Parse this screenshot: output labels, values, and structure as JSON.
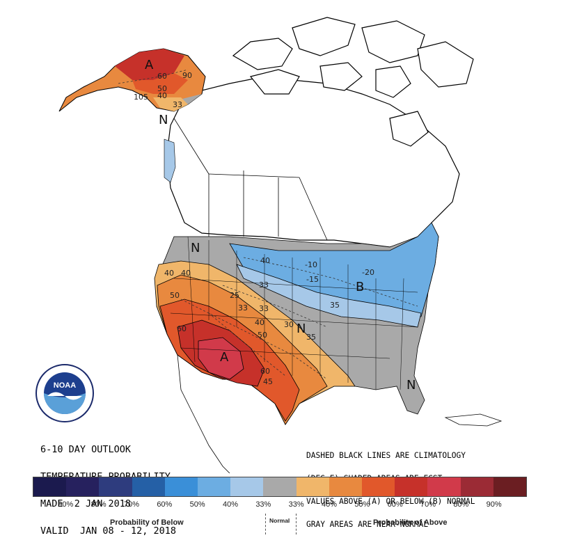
{
  "map": {
    "contour_labels": [
      "60",
      "50",
      "40",
      "33",
      "105",
      "90",
      "40",
      "33",
      "25",
      "50",
      "60",
      "40",
      "33",
      "40",
      "50",
      "60",
      "45",
      "40",
      "33",
      "-10",
      "-15",
      "-20",
      "35",
      "35",
      "30"
    ],
    "region_letters": [
      "A",
      "N",
      "N",
      "A",
      "B",
      "N",
      "N"
    ]
  },
  "title": {
    "line1": "6-10 DAY OUTLOOK",
    "line2": "TEMPERATURE PROBABILITY",
    "line3": "MADE  2 JAN 2018",
    "line4": "VALID  JAN 08 - 12, 2018"
  },
  "notes": {
    "line1": "DASHED BLACK LINES ARE CLIMATOLOGY",
    "line2": "(DEG F) SHADED AREAS ARE FCST",
    "line3": "VALUES ABOVE (A) OR BELOW (B) NORMAL",
    "line4": "GRAY AREAS ARE NEAR-NORMAL"
  },
  "logo": {
    "text": "NOAA",
    "ring_text": "NATIONAL OCEANIC AND ATMOSPHERIC ADMINISTRATION · U.S. DEPARTMENT OF COMMERCE"
  },
  "legend": {
    "colors": [
      "#1b1a4e",
      "#26215e",
      "#2e3c7e",
      "#2560a6",
      "#3a8fd8",
      "#6cade2",
      "#a6c8e8",
      "#a9a9a9",
      "#f0b66a",
      "#e8893f",
      "#e1582b",
      "#c6312a",
      "#d13a4a",
      "#9b2b35",
      "#6b1e22"
    ],
    "labels": [
      "90%",
      "80%",
      "70%",
      "60%",
      "50%",
      "40%",
      "33%",
      "33%",
      "40%",
      "50%",
      "60%",
      "70%",
      "80%",
      "90%"
    ],
    "below_caption": "Probability of Below",
    "normal_caption": "Normal",
    "above_caption": "Probability of Above"
  }
}
